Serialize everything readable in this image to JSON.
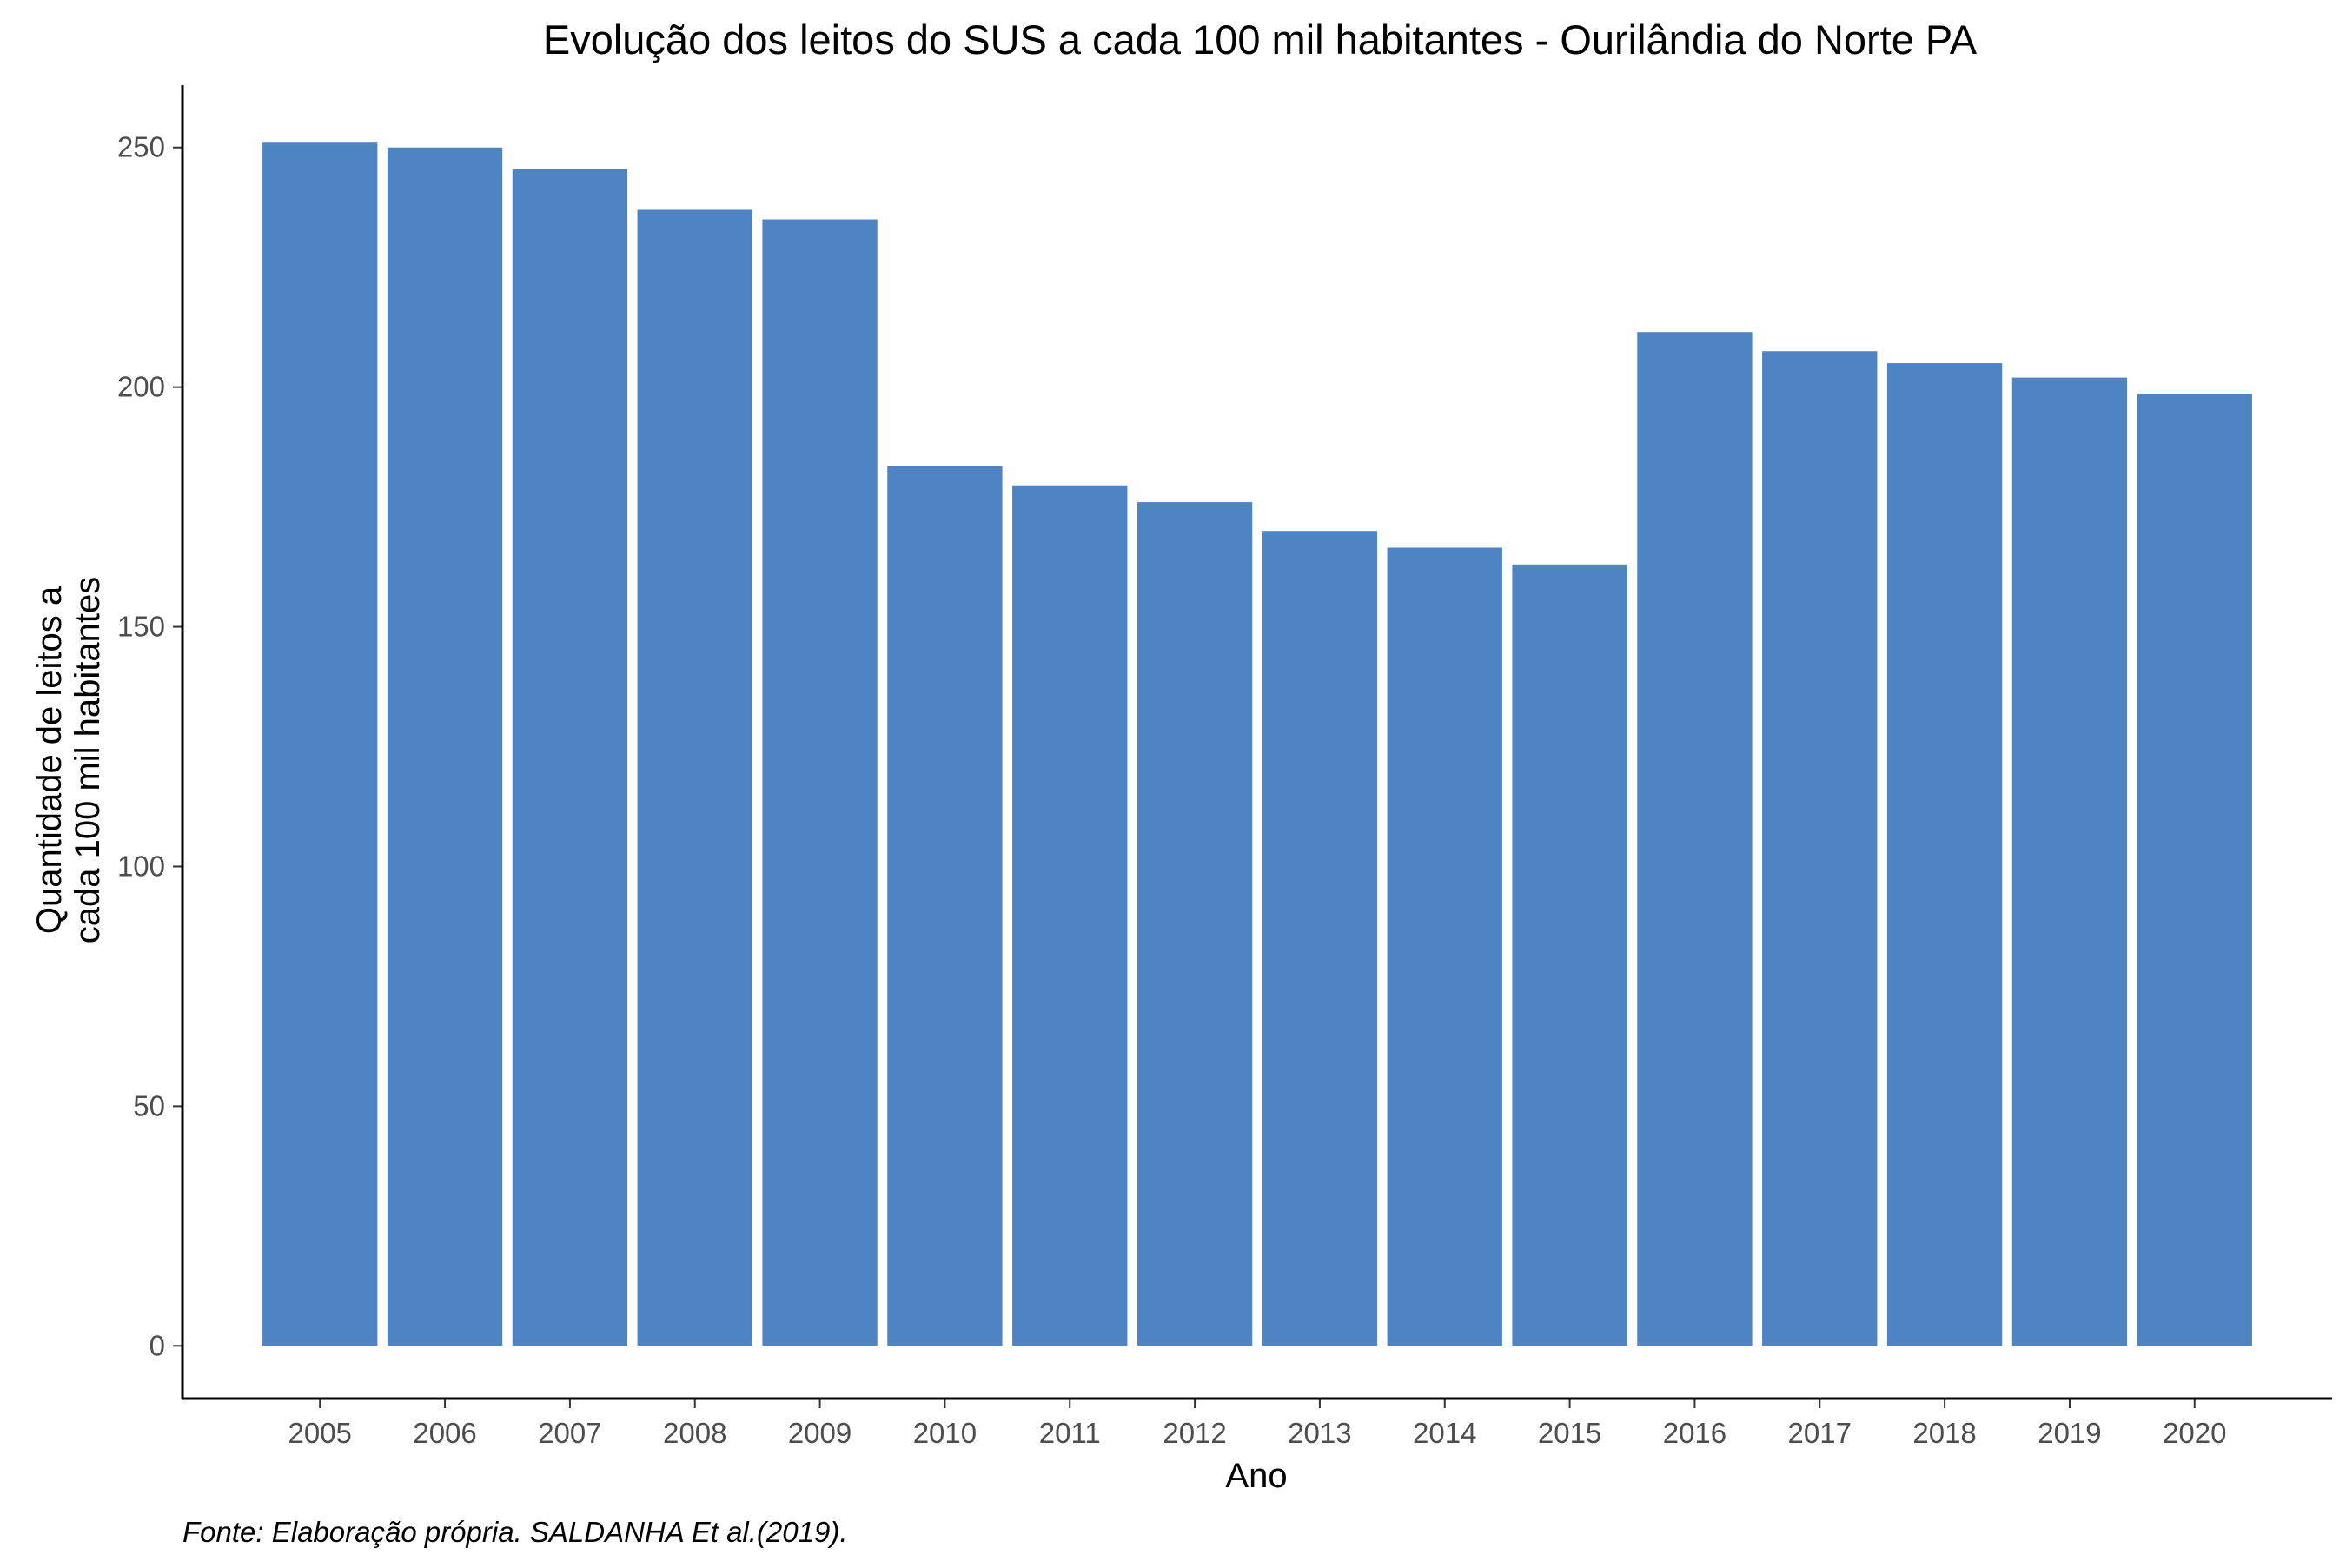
{
  "chart_data": {
    "type": "bar",
    "title": "Evolução dos leitos do SUS a cada 100 mil habitantes -  Ourilândia do Norte PA",
    "xlabel": "Ano",
    "ylabel_lines": [
      "Quantidade de leitos a",
      "cada 100 mil habitantes"
    ],
    "caption": "Fonte: Elaboração própria. SALDANHA Et al.(2019).",
    "categories": [
      "2005",
      "2006",
      "2007",
      "2008",
      "2009",
      "2010",
      "2011",
      "2012",
      "2013",
      "2014",
      "2015",
      "2016",
      "2017",
      "2018",
      "2019",
      "2020"
    ],
    "values": [
      251,
      250,
      245.5,
      237,
      235,
      183.5,
      179.5,
      176,
      170,
      166.5,
      163,
      211.5,
      207.5,
      205,
      202,
      198.5
    ],
    "yticks": [
      0,
      50,
      100,
      150,
      200,
      250
    ],
    "ylim": [
      -11,
      263
    ],
    "grid": false,
    "legend": "none",
    "colors": {
      "bar": "#4f84c4",
      "axis": "#000000",
      "tick_label": "#4d4d4d"
    }
  }
}
